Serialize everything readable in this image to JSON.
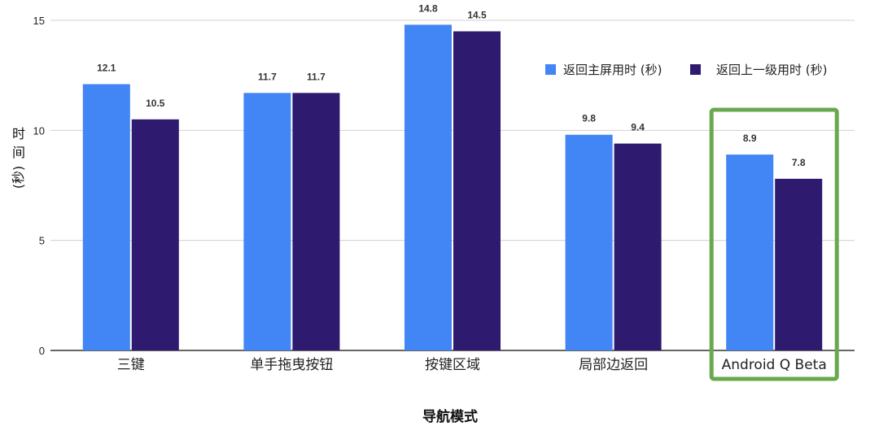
{
  "chart_data": {
    "type": "bar",
    "categories": [
      "三键",
      "单手拖曳按钮",
      "按键区域",
      "局部边返回",
      "Android Q Beta"
    ],
    "series": [
      {
        "name": "返回主屏用时 (秒)",
        "values": [
          12.1,
          11.7,
          14.8,
          9.8,
          8.9
        ],
        "color": "#4285f4"
      },
      {
        "name": "返回上一级用时 (秒)",
        "values": [
          10.5,
          11.7,
          14.5,
          9.4,
          7.8
        ],
        "color": "#2e1a6e"
      }
    ],
    "xlabel": "导航模式",
    "ylabel_chars": [
      "时",
      "间",
      "(秒)"
    ],
    "ylim": [
      0,
      15
    ],
    "yticks": [
      0,
      5,
      10,
      15
    ],
    "grid": true,
    "legend_position": "top-right",
    "highlight": {
      "category_index": 4,
      "color": "#6aa84f"
    }
  }
}
